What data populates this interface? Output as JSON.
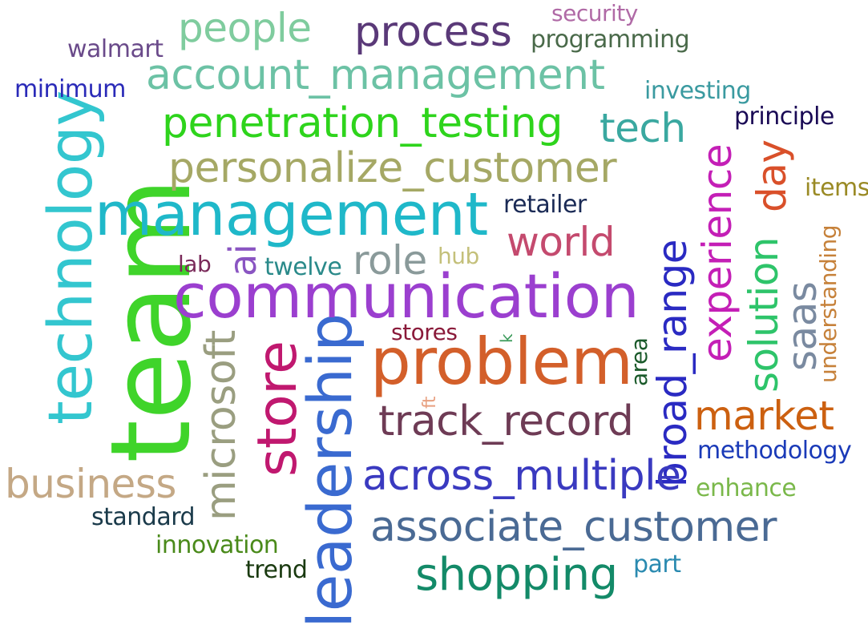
{
  "words": [
    {
      "id": "team",
      "text": "team",
      "color": "#3fd42a"
    },
    {
      "id": "communication",
      "text": "communication",
      "color": "#9b3fcf"
    },
    {
      "id": "management",
      "text": "management",
      "color": "#1fb8c9"
    },
    {
      "id": "problem",
      "text": "problem",
      "color": "#d35f2a"
    },
    {
      "id": "leadership",
      "text": "leadership",
      "color": "#3a6ad0"
    },
    {
      "id": "technology",
      "text": "technology",
      "color": "#33c6cf"
    },
    {
      "id": "store",
      "text": "store",
      "color": "#c0186f"
    },
    {
      "id": "penetration_testing",
      "text": "penetration_testing",
      "color": "#2ed41c"
    },
    {
      "id": "personalize_customer",
      "text": "personalize_customer",
      "color": "#a5a865"
    },
    {
      "id": "account_management",
      "text": "account_management",
      "color": "#6cc2a5"
    },
    {
      "id": "associate_customer",
      "text": "associate_customer",
      "color": "#4a6a94"
    },
    {
      "id": "track_record",
      "text": "track_record",
      "color": "#6e3b55"
    },
    {
      "id": "broad_range",
      "text": "broad_range",
      "color": "#2a2ac2"
    },
    {
      "id": "across_multiple",
      "text": "across_multiple",
      "color": "#3a3ac0"
    },
    {
      "id": "shopping",
      "text": "shopping",
      "color": "#138a68"
    },
    {
      "id": "microsoft",
      "text": "microsoft",
      "color": "#9a9e80"
    },
    {
      "id": "business",
      "text": "business",
      "color": "#c4a885"
    },
    {
      "id": "experience",
      "text": "experience",
      "color": "#c41fb6"
    },
    {
      "id": "market",
      "text": "market",
      "color": "#cc6010"
    },
    {
      "id": "process",
      "text": "process",
      "color": "#5a3978"
    },
    {
      "id": "people",
      "text": "people",
      "color": "#7fcc9e"
    },
    {
      "id": "world",
      "text": "world",
      "color": "#c44a6e"
    },
    {
      "id": "role",
      "text": "role",
      "color": "#8a9a9a"
    },
    {
      "id": "tech",
      "text": "tech",
      "color": "#3aa8a0"
    },
    {
      "id": "solution",
      "text": "solution",
      "color": "#2ec46a"
    },
    {
      "id": "day",
      "text": "day",
      "color": "#d9502a"
    },
    {
      "id": "saas",
      "text": "saas",
      "color": "#7a8aa0"
    },
    {
      "id": "ai",
      "text": "ai",
      "color": "#8a55c2"
    },
    {
      "id": "methodology",
      "text": "methodology",
      "color": "#1a3ab8"
    },
    {
      "id": "innovation",
      "text": "innovation",
      "color": "#4a8a1a"
    },
    {
      "id": "security",
      "text": "security",
      "color": "#b06aa6"
    },
    {
      "id": "programming",
      "text": "programming",
      "color": "#4a6a4a"
    },
    {
      "id": "walmart",
      "text": "walmart",
      "color": "#6a4a8a"
    },
    {
      "id": "minimum",
      "text": "minimum",
      "color": "#2a2ab8"
    },
    {
      "id": "investing",
      "text": "investing",
      "color": "#3a9aa0"
    },
    {
      "id": "principle",
      "text": "principle",
      "color": "#1a0a55"
    },
    {
      "id": "items",
      "text": "items",
      "color": "#9a8a25"
    },
    {
      "id": "understanding",
      "text": "understanding",
      "color": "#c6813a"
    },
    {
      "id": "retailer",
      "text": "retailer",
      "color": "#1a2a55"
    },
    {
      "id": "hub",
      "text": "hub",
      "color": "#c4c07a"
    },
    {
      "id": "twelve",
      "text": "twelve",
      "color": "#2a8a8a"
    },
    {
      "id": "lab",
      "text": "lab",
      "color": "#7a2a5a"
    },
    {
      "id": "stores",
      "text": "stores",
      "color": "#8a1a3a"
    },
    {
      "id": "area",
      "text": "area",
      "color": "#1a5a2a"
    },
    {
      "id": "enhance",
      "text": "enhance",
      "color": "#7ab84a"
    },
    {
      "id": "standard",
      "text": "standard",
      "color": "#1a3a4a"
    },
    {
      "id": "trend",
      "text": "trend",
      "color": "#1a3a10"
    },
    {
      "id": "part",
      "text": "part",
      "color": "#2a8ab0"
    },
    {
      "id": "ft",
      "text": "ft",
      "color": "#e8a080"
    },
    {
      "id": "k",
      "text": "k",
      "color": "#3a9a5a"
    }
  ]
}
